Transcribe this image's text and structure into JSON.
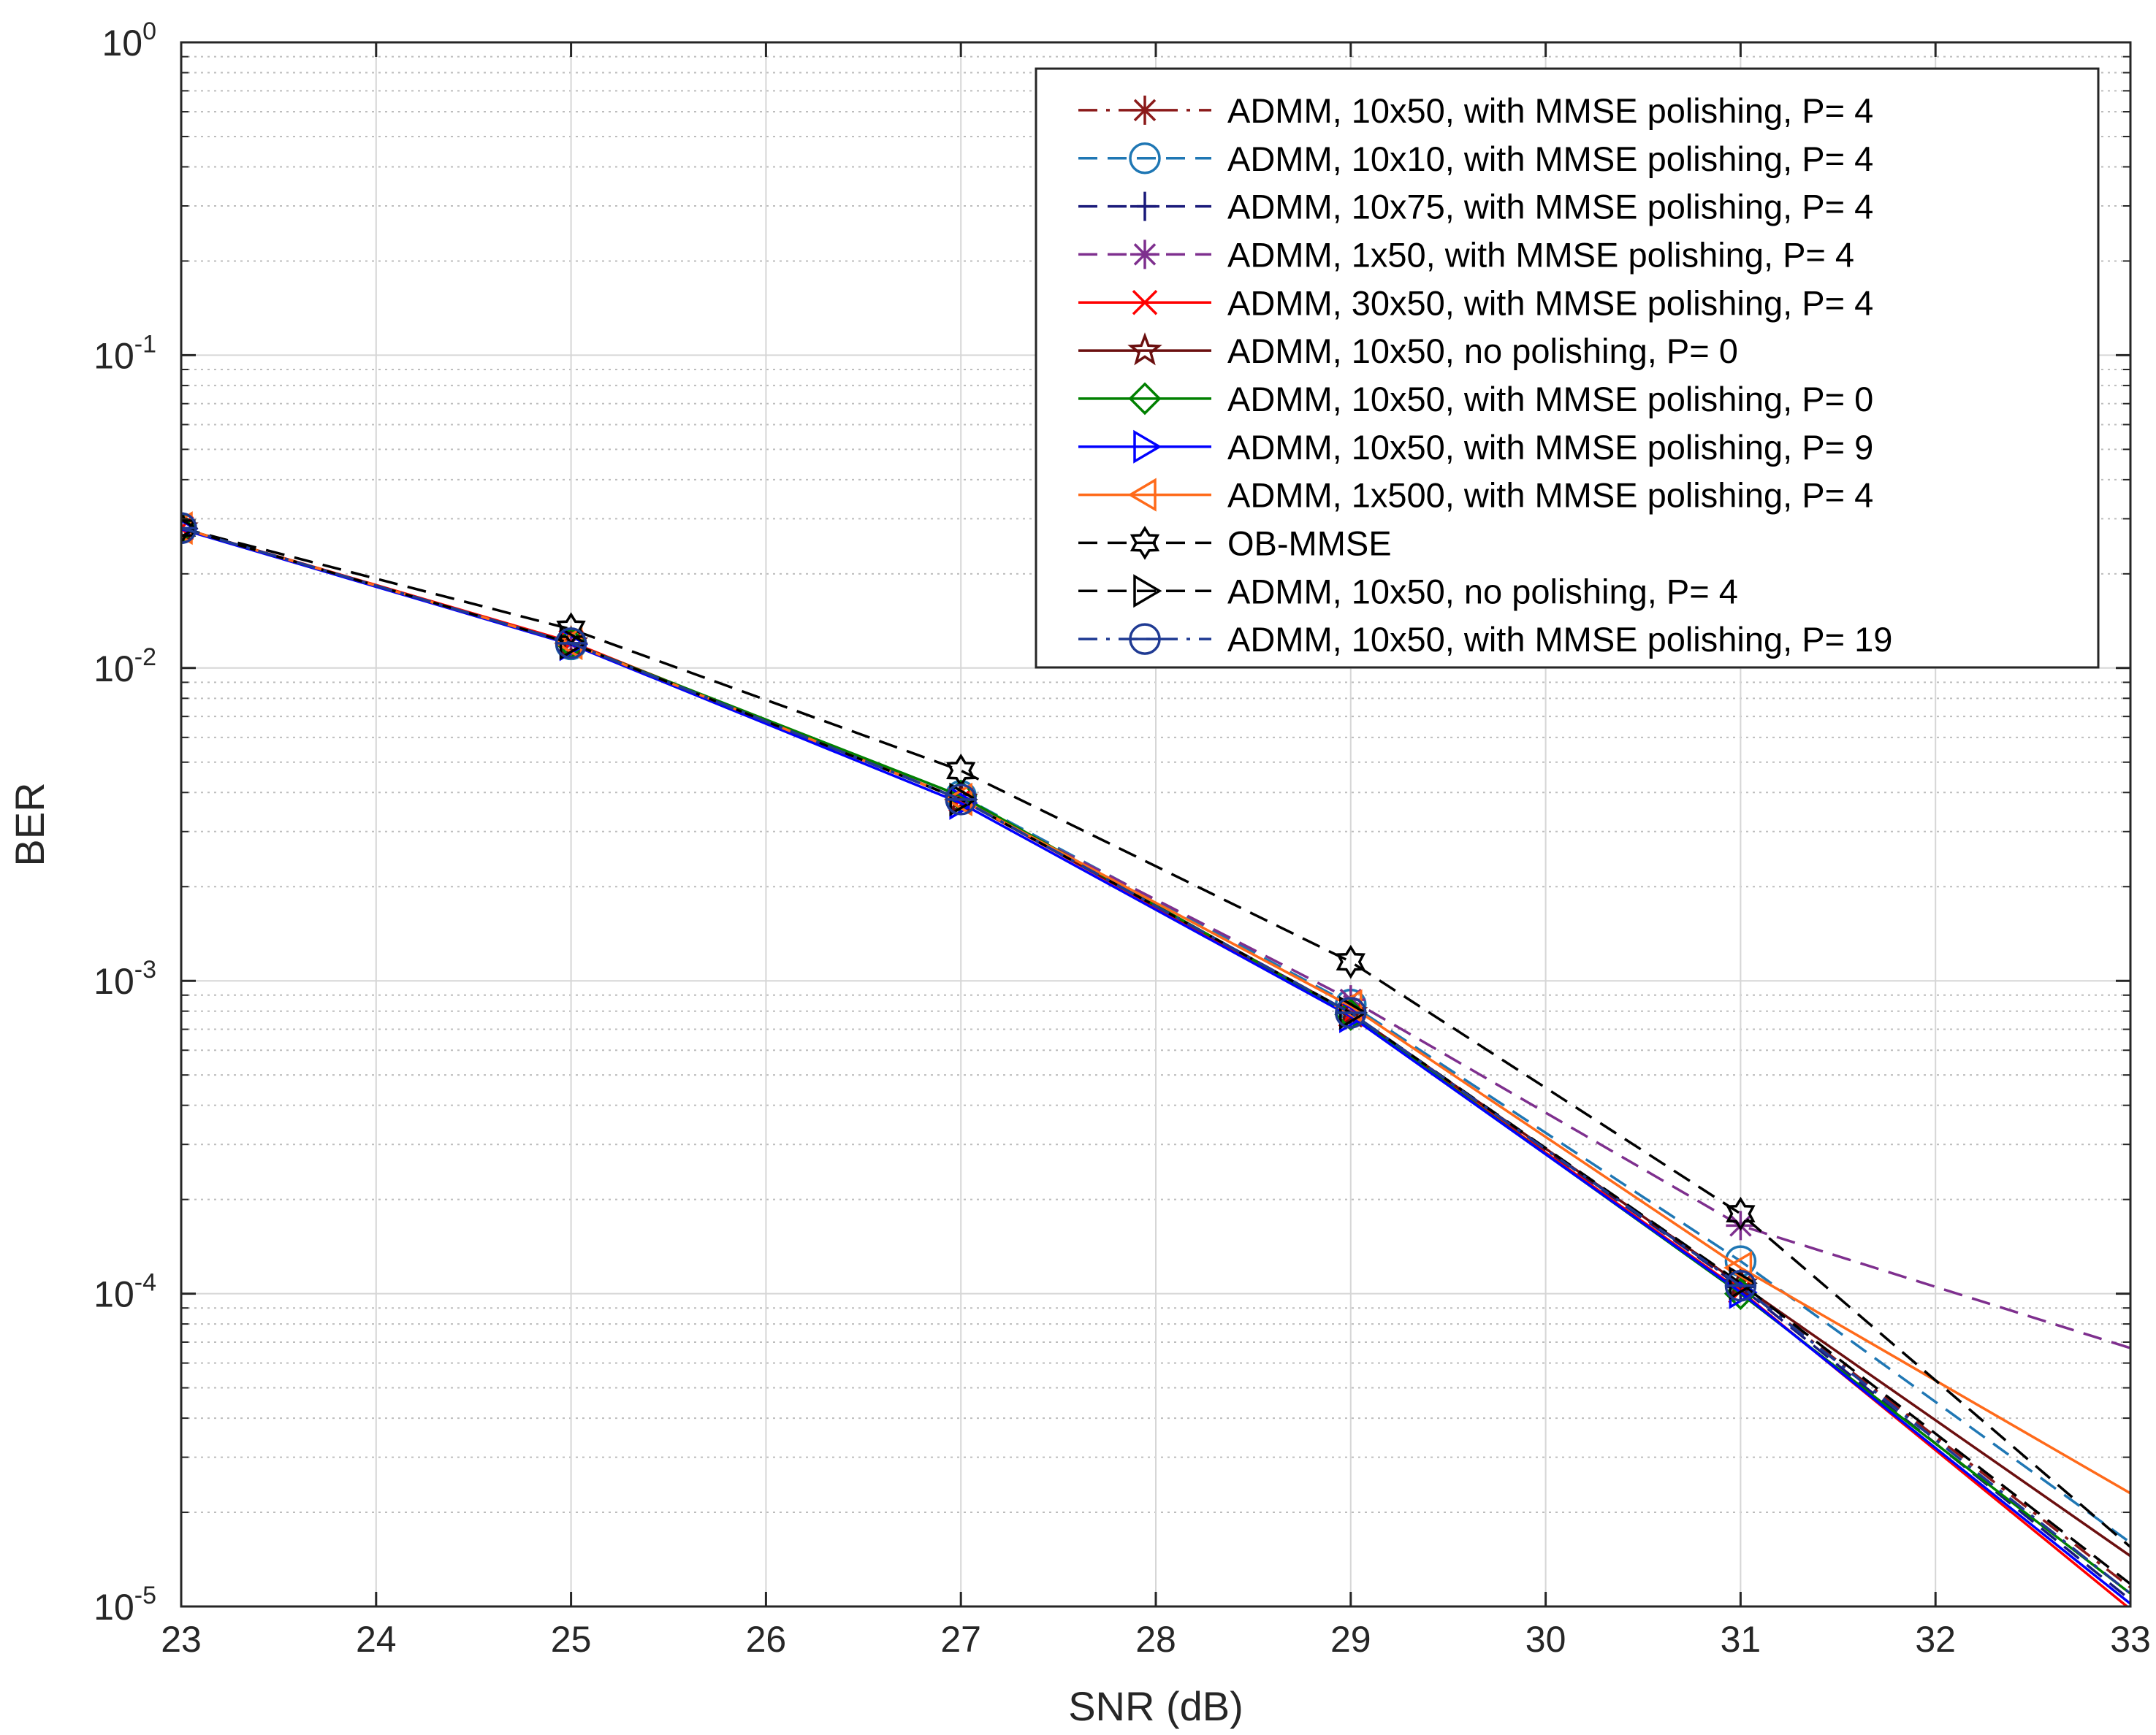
{
  "chart_data": {
    "type": "line",
    "title": "",
    "xlabel": "SNR (dB)",
    "ylabel": "BER",
    "x_scale": "linear",
    "y_scale": "log",
    "xlim": [
      23,
      33
    ],
    "ylim": [
      1e-05,
      1
    ],
    "grid": true,
    "minor_grid": true,
    "legend_position": "top-right",
    "xticks": [
      23,
      24,
      25,
      26,
      27,
      28,
      29,
      30,
      31,
      32,
      33
    ],
    "xtick_labels": [
      "23",
      "24",
      "25",
      "26",
      "27",
      "28",
      "29",
      "30",
      "31",
      "32",
      "33"
    ],
    "yticks": [
      {
        "value": 1,
        "base": "10",
        "exp": "0"
      },
      {
        "value": 0.1,
        "base": "10",
        "exp": "-1"
      },
      {
        "value": 0.01,
        "base": "10",
        "exp": "-2"
      },
      {
        "value": 0.001,
        "base": "10",
        "exp": "-3"
      },
      {
        "value": 0.0001,
        "base": "10",
        "exp": "-4"
      },
      {
        "value": 1e-05,
        "base": "10",
        "exp": "-5"
      }
    ],
    "x": [
      23,
      25,
      27,
      29,
      31,
      33
    ],
    "series": [
      {
        "name": "ADMM, 10x50, with MMSE polishing, P= 4",
        "color": "#8b1a1a",
        "dash": "dashdot",
        "marker": "asterisk",
        "values": [
          0.028,
          0.012,
          0.0038,
          0.00079,
          0.000106,
          1.15e-05
        ]
      },
      {
        "name": "ADMM, 10x10, with MMSE polishing, P= 4",
        "color": "#1f77b4",
        "dash": "dash",
        "marker": "circle",
        "values": [
          0.028,
          0.0119,
          0.0039,
          0.00084,
          0.000127,
          1.6e-05
        ]
      },
      {
        "name": "ADMM, 10x75, with MMSE polishing, P= 4",
        "color": "#1a1a7a",
        "dash": "dash",
        "marker": "plus",
        "values": [
          0.028,
          0.012,
          0.0038,
          0.00079,
          0.000105,
          1.05e-05
        ]
      },
      {
        "name": "ADMM, 1x50, with MMSE polishing, P= 4",
        "color": "#7e2f8e",
        "dash": "dash",
        "marker": "asterisk",
        "values": [
          0.028,
          0.012,
          0.0038,
          0.00087,
          0.000165,
          6.7e-05
        ]
      },
      {
        "name": "ADMM, 30x50, with MMSE polishing, P= 4",
        "color": "#ff0000",
        "dash": "solid",
        "marker": "x",
        "values": [
          0.028,
          0.0121,
          0.0038,
          0.00078,
          0.000102,
          9.8e-06
        ]
      },
      {
        "name": "ADMM, 10x50, no polishing, P= 0",
        "color": "#6b0f0f",
        "dash": "solid",
        "marker": "pentagram",
        "values": [
          0.028,
          0.012,
          0.0038,
          0.00079,
          0.000107,
          1.45e-05
        ]
      },
      {
        "name": "ADMM, 10x50, with MMSE polishing, P= 0",
        "color": "#008000",
        "dash": "solid",
        "marker": "diamond",
        "values": [
          0.028,
          0.012,
          0.0039,
          0.00078,
          0.0001,
          1.1e-05
        ]
      },
      {
        "name": "ADMM, 10x50, with MMSE polishing, P= 9",
        "color": "#0000ff",
        "dash": "solid",
        "marker": "triangle-right",
        "values": [
          0.0278,
          0.0119,
          0.0037,
          0.00077,
          0.000101,
          1.02e-05
        ]
      },
      {
        "name": "ADMM, 1x500, with MMSE polishing, P= 4",
        "color": "#ff6a1a",
        "dash": "solid",
        "marker": "triangle-left",
        "values": [
          0.028,
          0.012,
          0.0038,
          0.00083,
          0.000121,
          2.3e-05
        ]
      },
      {
        "name": "OB-MMSE",
        "color": "#000000",
        "dash": "dash",
        "marker": "hexagram",
        "values": [
          0.028,
          0.0133,
          0.0047,
          0.00115,
          0.00018,
          1.55e-05
        ]
      },
      {
        "name": "ADMM, 10x50, no polishing, P= 4",
        "color": "#000000",
        "dash": "dash",
        "marker": "triangle-right",
        "values": [
          0.028,
          0.012,
          0.0038,
          0.00079,
          0.000108,
          1.18e-05
        ]
      },
      {
        "name": "ADMM, 10x50, with MMSE polishing, P= 19",
        "color": "#1f3a93",
        "dash": "dashdot",
        "marker": "circle-bar",
        "values": [
          0.028,
          0.012,
          0.0038,
          0.00079,
          0.000106,
          1.1e-05
        ]
      }
    ]
  }
}
